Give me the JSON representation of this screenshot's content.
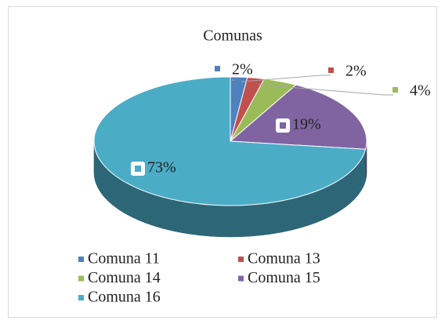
{
  "chart_data": {
    "type": "pie",
    "title": "Comunas",
    "categories": [
      "Comuna 11",
      "Comuna 13",
      "Comuna 14",
      "Comuna 15",
      "Comuna 16"
    ],
    "values": [
      2,
      2,
      4,
      19,
      73
    ],
    "value_labels": [
      "2%",
      "2%",
      "4%",
      "19%",
      "73%"
    ],
    "colors": [
      "#4f81bd",
      "#c0504d",
      "#9bbb59",
      "#8064a2",
      "#4bacc6"
    ],
    "three_d": true,
    "legend": "bottom"
  }
}
